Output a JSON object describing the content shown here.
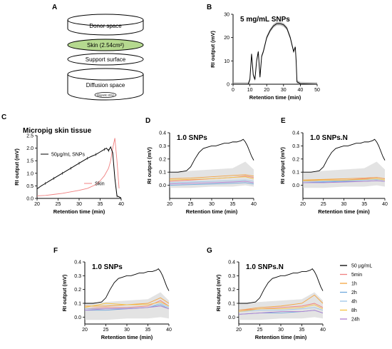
{
  "panel_letters": [
    "A",
    "B",
    "C",
    "D",
    "E",
    "F",
    "G"
  ],
  "diagram": {
    "donor": "Donor space",
    "skin": "Skin (2.54cm²)",
    "support": "Support surface",
    "diffusion": "Diffusion space",
    "stirrer": "Magnetic stirrer",
    "skin_fill": "#b5d98f"
  },
  "colors": {
    "black": "#000000",
    "5min": "#f08080",
    "1h": "#f4a340",
    "2h": "#6fa8dc",
    "4h": "#9fc5e8",
    "8h": "#f6c342",
    "24h": "#b07fd0",
    "skin": "#f08080",
    "band": "#d0d0d0"
  },
  "legend": [
    "50 µg/mL",
    "5min",
    "1h",
    "2h",
    "4h",
    "8h",
    "24h"
  ],
  "chart_data": [
    {
      "panel": "B",
      "type": "line",
      "title": "5 mg/mL SNPs",
      "xlabel": "Retention time (min)",
      "ylabel": "RI output  (mV)",
      "xlim": [
        0,
        50
      ],
      "ylim": [
        0,
        30
      ],
      "xticks": [
        0,
        10,
        20,
        30,
        40,
        50
      ],
      "yticks": [
        0,
        10,
        20,
        30
      ],
      "series": [
        {
          "x": [
            0,
            9,
            10,
            11,
            12,
            13,
            14,
            15,
            16,
            17,
            18,
            20,
            22,
            24,
            26,
            28,
            30,
            32,
            34,
            35,
            36,
            37,
            37.5,
            38,
            40,
            50
          ],
          "y": [
            0,
            0,
            2,
            13,
            4,
            2,
            10,
            14,
            3,
            12,
            14,
            20,
            23,
            25,
            26,
            26,
            25.5,
            24,
            20,
            17,
            14,
            16,
            10,
            1,
            0.2,
            0
          ]
        }
      ]
    },
    {
      "panel": "C",
      "type": "line",
      "title": "Micropig skin tissue",
      "xlabel": "Retention time (min)",
      "ylabel": "RI output  (mV)",
      "xlim": [
        20,
        40
      ],
      "ylim": [
        0,
        2.5
      ],
      "xticks": [
        20,
        25,
        30,
        35,
        40
      ],
      "yticks": [
        0,
        0.5,
        1.0,
        1.5,
        2.0,
        2.5
      ],
      "series": [
        {
          "name": "50μg/mL SNPs",
          "x": [
            20,
            21,
            22,
            23,
            24,
            25,
            26,
            27,
            28,
            29,
            30,
            31,
            32,
            33,
            34,
            35,
            36,
            36.5,
            37,
            37.5,
            38,
            38.5,
            39,
            40
          ],
          "y": [
            0.38,
            0.5,
            0.6,
            0.7,
            0.8,
            0.9,
            1.0,
            1.1,
            1.2,
            1.3,
            1.4,
            1.5,
            1.6,
            1.68,
            1.75,
            1.85,
            1.95,
            2.0,
            1.9,
            2.05,
            1.8,
            0.8,
            0.1,
            0.02
          ]
        },
        {
          "name": "Skin",
          "x": [
            20,
            22,
            24,
            26,
            28,
            30,
            32,
            34,
            35,
            36,
            37,
            37.5,
            38,
            38.5,
            39,
            39.5
          ],
          "y": [
            0.1,
            0.12,
            0.16,
            0.2,
            0.26,
            0.32,
            0.4,
            0.55,
            0.7,
            0.9,
            1.2,
            1.5,
            2.0,
            2.4,
            1.5,
            0.4
          ]
        }
      ]
    },
    {
      "panel": "D",
      "type": "line",
      "title": "1.0 SNPs",
      "xlabel": "Retention time (min)",
      "ylabel": "RI output  (mV)",
      "xlim": [
        20,
        40
      ],
      "ylim": [
        -0.1,
        0.4
      ],
      "xticks": [
        20,
        25,
        30,
        35,
        40
      ],
      "yticks": [
        0.0,
        0.1,
        0.2,
        0.3,
        0.4
      ],
      "series": [
        {
          "name": "50 µg/mL",
          "x": [
            20,
            22,
            23,
            24,
            25,
            26,
            27,
            28,
            29,
            30,
            31,
            32,
            33,
            34,
            35,
            36,
            37,
            37.5,
            38,
            38.5,
            39,
            39.5,
            40
          ],
          "y": [
            0.1,
            0.1,
            0.105,
            0.11,
            0.14,
            0.2,
            0.25,
            0.28,
            0.29,
            0.3,
            0.3,
            0.31,
            0.32,
            0.32,
            0.33,
            0.33,
            0.34,
            0.35,
            0.33,
            0.3,
            0.26,
            0.22,
            0.19
          ]
        },
        {
          "name": "5min",
          "x": [
            20,
            25,
            30,
            35,
            38,
            40
          ],
          "y": [
            0.03,
            0.04,
            0.05,
            0.06,
            0.07,
            0.06
          ]
        },
        {
          "name": "1h",
          "x": [
            20,
            25,
            30,
            35,
            38,
            40
          ],
          "y": [
            0.05,
            0.055,
            0.065,
            0.075,
            0.08,
            0.07
          ]
        },
        {
          "name": "2h",
          "x": [
            20,
            25,
            30,
            35,
            38,
            40
          ],
          "y": [
            0.0,
            0.005,
            0.01,
            0.015,
            0.02,
            0.01
          ]
        },
        {
          "name": "4h",
          "x": [
            20,
            25,
            30,
            35,
            38,
            40
          ],
          "y": [
            0.02,
            0.025,
            0.03,
            0.035,
            0.04,
            0.03
          ]
        },
        {
          "name": "8h",
          "x": [
            20,
            25,
            30,
            35,
            38,
            40
          ],
          "y": [
            0.04,
            0.045,
            0.05,
            0.06,
            0.065,
            0.05
          ]
        },
        {
          "name": "24h",
          "x": [
            20,
            25,
            30,
            35,
            38,
            40
          ],
          "y": [
            0.01,
            0.015,
            0.02,
            0.025,
            0.03,
            0.02
          ]
        }
      ]
    },
    {
      "panel": "E",
      "type": "line",
      "title": "1.0 SNPs.N",
      "xlabel": "Retention time (min)",
      "ylabel": "RI output  (mV)",
      "xlim": [
        20,
        40
      ],
      "ylim": [
        -0.1,
        0.4
      ],
      "xticks": [
        20,
        25,
        30,
        35,
        40
      ],
      "yticks": [
        0.0,
        0.1,
        0.2,
        0.3,
        0.4
      ],
      "series": [
        {
          "name": "50 µg/mL",
          "x": [
            20,
            22,
            23,
            24,
            25,
            26,
            27,
            28,
            29,
            30,
            31,
            32,
            33,
            34,
            35,
            36,
            37,
            37.5,
            38,
            38.5,
            39,
            39.5,
            40
          ],
          "y": [
            0.1,
            0.1,
            0.105,
            0.11,
            0.14,
            0.2,
            0.25,
            0.28,
            0.29,
            0.3,
            0.3,
            0.31,
            0.32,
            0.32,
            0.33,
            0.33,
            0.34,
            0.35,
            0.33,
            0.3,
            0.26,
            0.22,
            0.19
          ]
        },
        {
          "name": "5min",
          "x": [
            20,
            25,
            30,
            35,
            38,
            40
          ],
          "y": [
            0.03,
            0.04,
            0.04,
            0.05,
            0.06,
            0.05
          ]
        },
        {
          "name": "1h",
          "x": [
            20,
            25,
            30,
            35,
            38,
            40
          ],
          "y": [
            0.04,
            0.045,
            0.05,
            0.055,
            0.06,
            0.05
          ]
        },
        {
          "name": "2h",
          "x": [
            20,
            25,
            30,
            35,
            38,
            40
          ],
          "y": [
            0.02,
            0.025,
            0.03,
            0.03,
            0.035,
            0.03
          ]
        },
        {
          "name": "4h",
          "x": [
            20,
            25,
            30,
            35,
            38,
            40
          ],
          "y": [
            0.03,
            0.03,
            0.035,
            0.04,
            0.045,
            0.04
          ]
        },
        {
          "name": "8h",
          "x": [
            20,
            25,
            30,
            35,
            38,
            40
          ],
          "y": [
            0.035,
            0.04,
            0.04,
            0.045,
            0.05,
            0.04
          ]
        },
        {
          "name": "24h",
          "x": [
            20,
            25,
            30,
            35,
            38,
            40
          ],
          "y": [
            0.02,
            0.02,
            0.025,
            0.03,
            0.035,
            0.03
          ]
        }
      ]
    },
    {
      "panel": "F",
      "type": "line",
      "title": "1.0 SNPs",
      "xlabel": "Retention time (min)",
      "ylabel": "RI output  (mV)",
      "xlim": [
        20,
        40
      ],
      "ylim": [
        -0.05,
        0.4
      ],
      "xticks": [
        20,
        25,
        30,
        35,
        40
      ],
      "yticks": [
        0.0,
        0.1,
        0.2,
        0.3,
        0.4
      ],
      "series": [
        {
          "name": "50 µg/mL",
          "x": [
            20,
            22,
            23,
            24,
            25,
            26,
            27,
            28,
            29,
            30,
            31,
            32,
            33,
            34,
            35,
            36,
            37,
            37.5,
            38,
            38.5,
            39,
            39.5,
            40
          ],
          "y": [
            0.1,
            0.1,
            0.105,
            0.11,
            0.14,
            0.2,
            0.25,
            0.28,
            0.29,
            0.3,
            0.3,
            0.31,
            0.32,
            0.32,
            0.33,
            0.33,
            0.34,
            0.35,
            0.33,
            0.3,
            0.26,
            0.22,
            0.19
          ]
        },
        {
          "name": "5min",
          "x": [
            20,
            25,
            30,
            35,
            38,
            40
          ],
          "y": [
            0.06,
            0.07,
            0.07,
            0.08,
            0.12,
            0.08
          ]
        },
        {
          "name": "1h",
          "x": [
            20,
            25,
            30,
            35,
            38,
            40
          ],
          "y": [
            0.08,
            0.08,
            0.09,
            0.1,
            0.14,
            0.1
          ]
        },
        {
          "name": "2h",
          "x": [
            20,
            25,
            30,
            35,
            38,
            40
          ],
          "y": [
            0.05,
            0.05,
            0.06,
            0.07,
            0.09,
            0.06
          ]
        },
        {
          "name": "4h",
          "x": [
            20,
            25,
            30,
            35,
            38,
            40
          ],
          "y": [
            0.06,
            0.06,
            0.065,
            0.07,
            0.1,
            0.07
          ]
        },
        {
          "name": "8h",
          "x": [
            20,
            25,
            30,
            35,
            38,
            40
          ],
          "y": [
            0.07,
            0.1,
            0.09,
            0.09,
            0.11,
            0.08
          ]
        },
        {
          "name": "24h",
          "x": [
            20,
            25,
            30,
            35,
            38,
            40
          ],
          "y": [
            0.05,
            0.06,
            0.06,
            0.07,
            0.08,
            0.06
          ]
        }
      ]
    },
    {
      "panel": "G",
      "type": "line",
      "title": "1.0 SNPs.N",
      "xlabel": "Retention time (min)",
      "ylabel": "RI output  (mV)",
      "xlim": [
        20,
        40
      ],
      "ylim": [
        -0.05,
        0.4
      ],
      "xticks": [
        20,
        25,
        30,
        35,
        40
      ],
      "yticks": [
        0.0,
        0.1,
        0.2,
        0.3,
        0.4
      ],
      "series": [
        {
          "name": "50 µg/mL",
          "x": [
            20,
            22,
            23,
            24,
            25,
            26,
            27,
            28,
            29,
            30,
            31,
            32,
            33,
            34,
            35,
            36,
            37,
            37.5,
            38,
            38.5,
            39,
            39.5,
            40
          ],
          "y": [
            0.1,
            0.1,
            0.105,
            0.11,
            0.14,
            0.2,
            0.25,
            0.28,
            0.29,
            0.3,
            0.3,
            0.31,
            0.32,
            0.32,
            0.33,
            0.33,
            0.34,
            0.35,
            0.33,
            0.3,
            0.26,
            0.22,
            0.19
          ]
        },
        {
          "name": "5min",
          "x": [
            20,
            25,
            30,
            35,
            38,
            40
          ],
          "y": [
            0.05,
            0.06,
            0.07,
            0.08,
            0.1,
            0.07
          ]
        },
        {
          "name": "1h",
          "x": [
            20,
            25,
            30,
            35,
            38,
            40
          ],
          "y": [
            0.05,
            0.07,
            0.08,
            0.1,
            0.16,
            0.1
          ]
        },
        {
          "name": "2h",
          "x": [
            20,
            25,
            30,
            35,
            38,
            40
          ],
          "y": [
            0.02,
            0.03,
            0.03,
            0.04,
            0.05,
            0.03
          ]
        },
        {
          "name": "4h",
          "x": [
            20,
            25,
            30,
            35,
            38,
            40
          ],
          "y": [
            0.04,
            0.05,
            0.05,
            0.06,
            0.07,
            0.05
          ]
        },
        {
          "name": "8h",
          "x": [
            20,
            25,
            30,
            35,
            38,
            40
          ],
          "y": [
            0.04,
            0.06,
            0.06,
            0.07,
            0.09,
            0.06
          ]
        },
        {
          "name": "24h",
          "x": [
            20,
            25,
            30,
            35,
            38,
            40
          ],
          "y": [
            0.02,
            0.03,
            0.04,
            0.04,
            0.05,
            0.03
          ]
        }
      ]
    }
  ]
}
